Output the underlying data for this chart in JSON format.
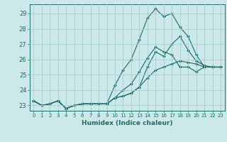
{
  "xlabel": "Humidex (Indice chaleur)",
  "bg_color": "#cce8e8",
  "grid_color": "#aacece",
  "line_color": "#1a6e6a",
  "xlim": [
    -0.5,
    23.5
  ],
  "ylim": [
    22.65,
    29.6
  ],
  "yticks": [
    23,
    24,
    25,
    26,
    27,
    28,
    29
  ],
  "xticks": [
    0,
    1,
    2,
    3,
    4,
    5,
    6,
    7,
    8,
    9,
    10,
    11,
    12,
    13,
    14,
    15,
    16,
    17,
    18,
    19,
    20,
    21,
    22,
    23
  ],
  "series": [
    [
      23.3,
      23.0,
      23.1,
      23.3,
      22.8,
      23.0,
      23.1,
      23.1,
      23.1,
      23.1,
      24.3,
      25.3,
      26.0,
      27.3,
      28.7,
      29.3,
      28.8,
      29.0,
      28.1,
      27.5,
      26.3,
      25.5,
      25.5,
      25.5
    ],
    [
      23.3,
      23.0,
      23.1,
      23.3,
      22.8,
      23.0,
      23.1,
      23.1,
      23.1,
      23.1,
      23.5,
      24.0,
      24.4,
      25.2,
      26.1,
      26.8,
      26.5,
      26.3,
      25.5,
      25.5,
      25.2,
      25.5,
      25.5,
      25.5
    ],
    [
      23.3,
      23.0,
      23.1,
      23.3,
      22.8,
      23.0,
      23.1,
      23.1,
      23.1,
      23.1,
      23.5,
      23.6,
      23.8,
      24.2,
      25.5,
      26.5,
      26.2,
      27.0,
      27.5,
      26.6,
      25.9,
      25.6,
      25.5,
      25.5
    ],
    [
      23.3,
      23.0,
      23.1,
      23.3,
      22.8,
      23.0,
      23.1,
      23.1,
      23.1,
      23.1,
      23.5,
      23.6,
      23.8,
      24.2,
      24.8,
      25.3,
      25.5,
      25.7,
      25.9,
      25.8,
      25.7,
      25.5,
      25.5,
      25.5
    ]
  ]
}
